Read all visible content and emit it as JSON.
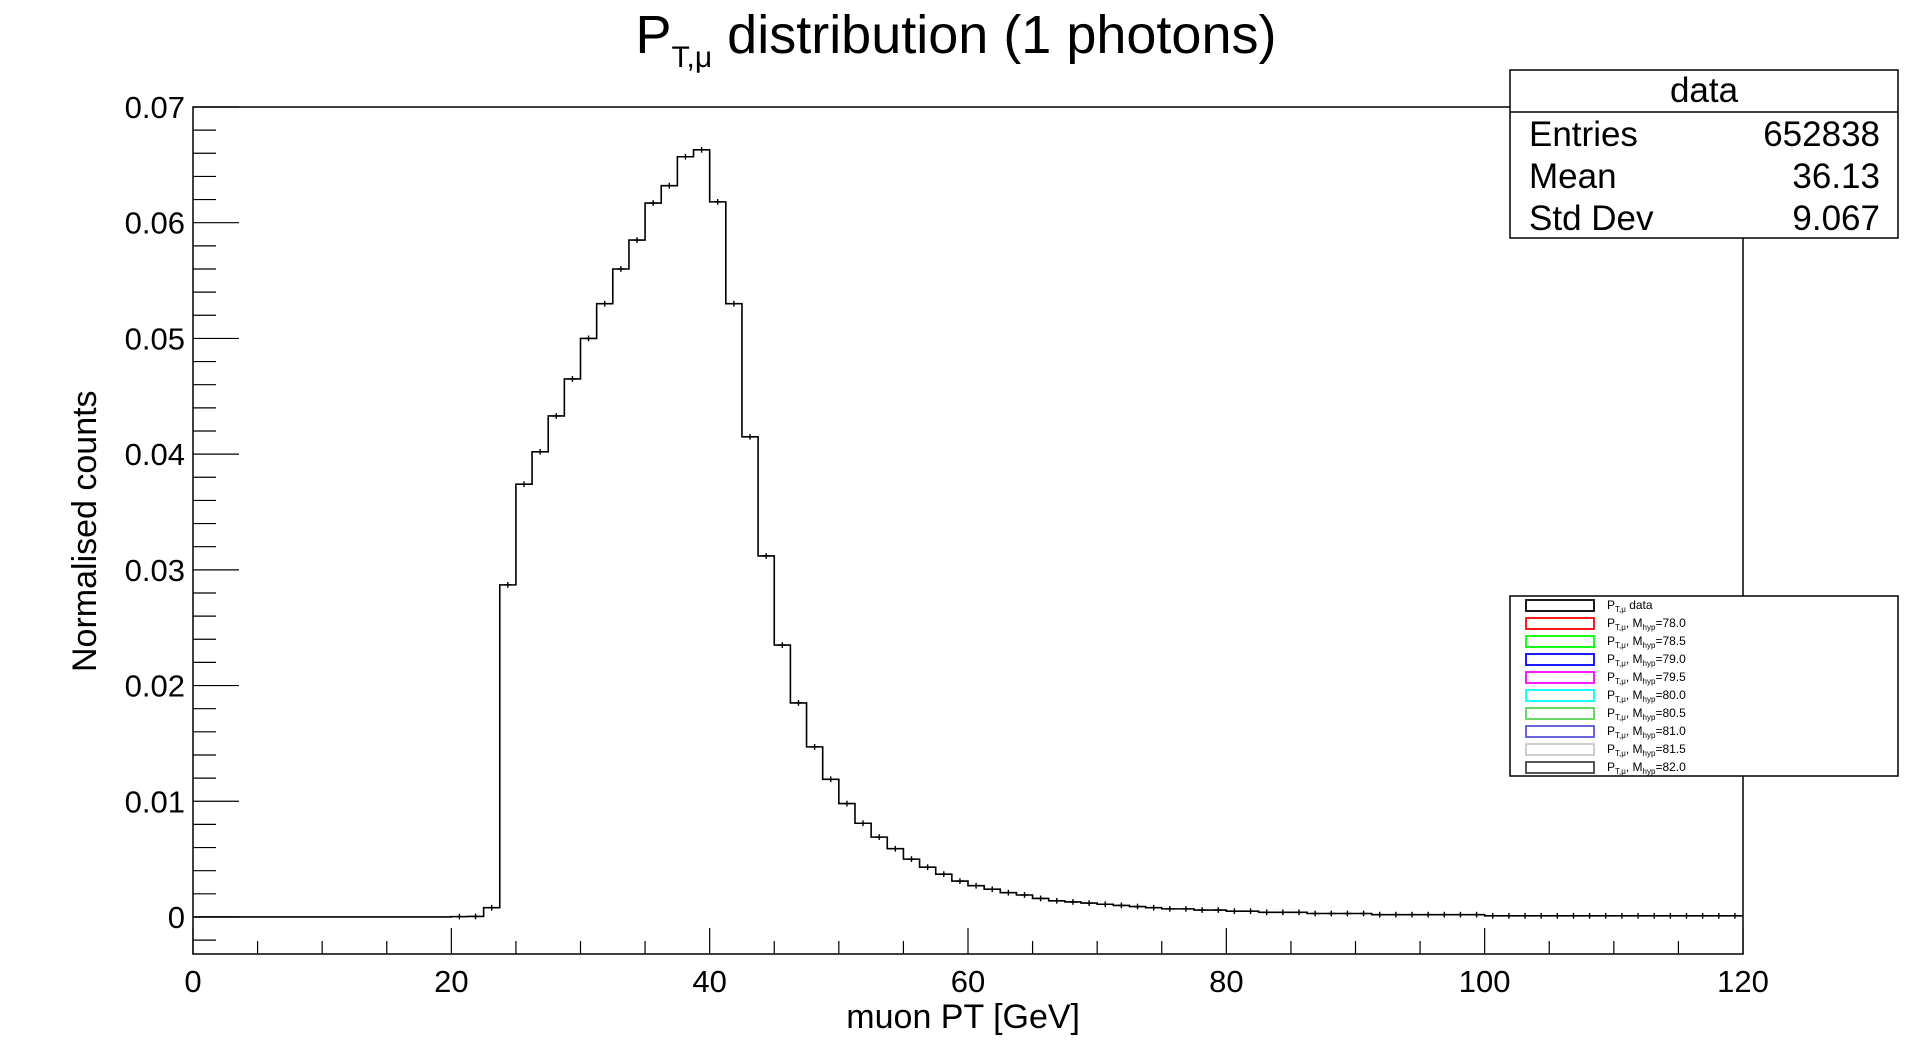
{
  "chart_data": {
    "type": "bar",
    "title_main": "P",
    "title_sub": "T,μ",
    "title_rest": " distribution (1 photons)",
    "xlabel": "muon PT [GeV]",
    "ylabel": "Normalised counts",
    "xlim": [
      0,
      120
    ],
    "ylim": [
      -0.0032,
      0.07
    ],
    "x_ticks": [
      "0",
      "20",
      "40",
      "60",
      "80",
      "100",
      "120"
    ],
    "y_ticks": [
      "0",
      "0.01",
      "0.02",
      "0.03",
      "0.04",
      "0.05",
      "0.06",
      "0.07"
    ],
    "bin_width": 1.25,
    "bin_start": 0,
    "series": [
      {
        "name": "data",
        "values": [
          0,
          0,
          0,
          0,
          0,
          0,
          0,
          0,
          0,
          0,
          0,
          0,
          0,
          0,
          0,
          0,
          3e-05,
          5e-05,
          0.0008,
          0.0287,
          0.0374,
          0.0402,
          0.0433,
          0.0465,
          0.05,
          0.053,
          0.056,
          0.0585,
          0.0617,
          0.0632,
          0.0657,
          0.0663,
          0.0618,
          0.053,
          0.0415,
          0.0312,
          0.0235,
          0.0185,
          0.0147,
          0.0119,
          0.0098,
          0.0081,
          0.0069,
          0.0059,
          0.005,
          0.0043,
          0.0037,
          0.0031,
          0.0027,
          0.0024,
          0.0021,
          0.0019,
          0.0016,
          0.0014,
          0.0013,
          0.0012,
          0.0011,
          0.001,
          0.0009,
          0.0008,
          0.0007,
          0.0007,
          0.0006,
          0.0006,
          0.0005,
          0.0005,
          0.0004,
          0.0004,
          0.0004,
          0.0003,
          0.0003,
          0.0003,
          0.0003,
          0.0002,
          0.0002,
          0.0002,
          0.0002,
          0.0002,
          0.0002,
          0.0002,
          0.0001,
          0.0001,
          0.0001,
          0.0001,
          0.0001,
          0.0001,
          0.0001,
          0.0001,
          0.0001,
          0.0001,
          0.0001,
          0.0001,
          0.0001,
          0.0001,
          0.0001,
          0.0001
        ]
      }
    ],
    "stats_box": {
      "title": "data",
      "entries_label": "Entries",
      "entries_value": "652838",
      "mean_label": "Mean",
      "mean_value": "36.13",
      "stddev_label": "Std Dev",
      "stddev_value": "9.067"
    },
    "legend": [
      {
        "sub": "T,μ",
        "rest": " data",
        "hyp": "",
        "color": "#000000"
      },
      {
        "sub": "T,μ",
        "rest": "=78.0",
        "hyp": "hyp",
        "color": "#ff0000"
      },
      {
        "sub": "T,μ",
        "rest": "=78.5",
        "hyp": "hyp",
        "color": "#00ff00"
      },
      {
        "sub": "T,μ",
        "rest": "=79.0",
        "hyp": "hyp",
        "color": "#0000ff"
      },
      {
        "sub": "T,μ",
        "rest": "=79.5",
        "hyp": "hyp",
        "color": "#ff00ff"
      },
      {
        "sub": "T,μ",
        "rest": "=80.0",
        "hyp": "hyp",
        "color": "#00ffff"
      },
      {
        "sub": "T,μ",
        "rest": "=80.5",
        "hyp": "hyp",
        "color": "#59d354"
      },
      {
        "sub": "T,μ",
        "rest": "=81.0",
        "hyp": "hyp",
        "color": "#5954d8"
      },
      {
        "sub": "T,μ",
        "rest": "=81.5",
        "hyp": "hyp",
        "color": "#c8c8c8"
      },
      {
        "sub": "T,μ",
        "rest": "=82.0",
        "hyp": "hyp",
        "color": "#444444"
      }
    ],
    "legend_prefix": "P",
    "legend_m": ", M",
    "legend_placement": "right-middle",
    "stats_placement": "top-right",
    "grid": false
  }
}
